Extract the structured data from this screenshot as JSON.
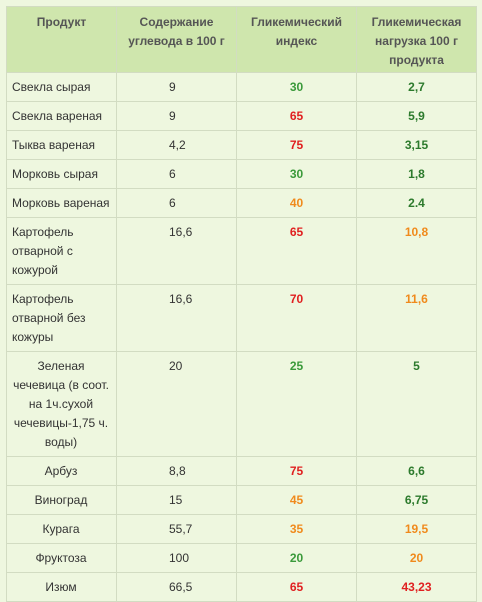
{
  "colors": {
    "background": "#eef7df",
    "header_bg": "#cfe6ad",
    "border": "#d2dcc2",
    "green": "#3a9a3a",
    "dark_green": "#2c7a2c",
    "red": "#e02020",
    "orange": "#f08a1c"
  },
  "table": {
    "headers": [
      "Продукт",
      "Содержание углевода в 100 г",
      "Гликемический индекс",
      "Гликемическая нагрузка 100 г продукта"
    ],
    "rows": [
      {
        "product": "Свекла сырая",
        "carbs": "9",
        "gi": "30",
        "gi_color": "green",
        "gl": "2,7",
        "gl_color": "dark_green"
      },
      {
        "product": "Свекла вареная",
        "carbs": "9",
        "gi": "65",
        "gi_color": "red",
        "gl": "5,9",
        "gl_color": "dark_green"
      },
      {
        "product": "Тыква вареная",
        "carbs": "4,2",
        "gi": "75",
        "gi_color": "red",
        "gl": "3,15",
        "gl_color": "dark_green"
      },
      {
        "product": "Морковь сырая",
        "carbs": "6",
        "gi": "30",
        "gi_color": "green",
        "gl": "1,8",
        "gl_color": "dark_green"
      },
      {
        "product": "Морковь вареная",
        "carbs": "6",
        "gi": "40",
        "gi_color": "orange",
        "gl": "2.4",
        "gl_color": "dark_green"
      },
      {
        "product": "Картофель отварной с кожурой",
        "carbs": "16,6",
        "gi": "65",
        "gi_color": "red",
        "gl": "10,8",
        "gl_color": "orange"
      },
      {
        "product": "Картофель отварной без кожуры",
        "carbs": "16,6",
        "gi": "70",
        "gi_color": "red",
        "gl": "11,6",
        "gl_color": "orange"
      },
      {
        "product": "Зеленая чечевица (в соот. на 1ч.сухой чечевицы-1,75 ч. воды)",
        "carbs": "20",
        "gi": "25",
        "gi_color": "green",
        "gl": "5",
        "gl_color": "dark_green"
      },
      {
        "product": "Арбуз",
        "carbs": "8,8",
        "gi": "75",
        "gi_color": "red",
        "gl": "6,6",
        "gl_color": "dark_green"
      },
      {
        "product": "Виноград",
        "carbs": "15",
        "gi": "45",
        "gi_color": "orange",
        "gl": "6,75",
        "gl_color": "dark_green"
      },
      {
        "product": "Курага",
        "carbs": "55,7",
        "gi": "35",
        "gi_color": "orange",
        "gl": "19,5",
        "gl_color": "orange"
      },
      {
        "product": "Фруктоза",
        "carbs": "100",
        "gi": "20",
        "gi_color": "green",
        "gl": "20",
        "gl_color": "orange"
      },
      {
        "product": "Изюм",
        "carbs": "66,5",
        "gi": "65",
        "gi_color": "red",
        "gl": "43,23",
        "gl_color": "red"
      }
    ]
  }
}
